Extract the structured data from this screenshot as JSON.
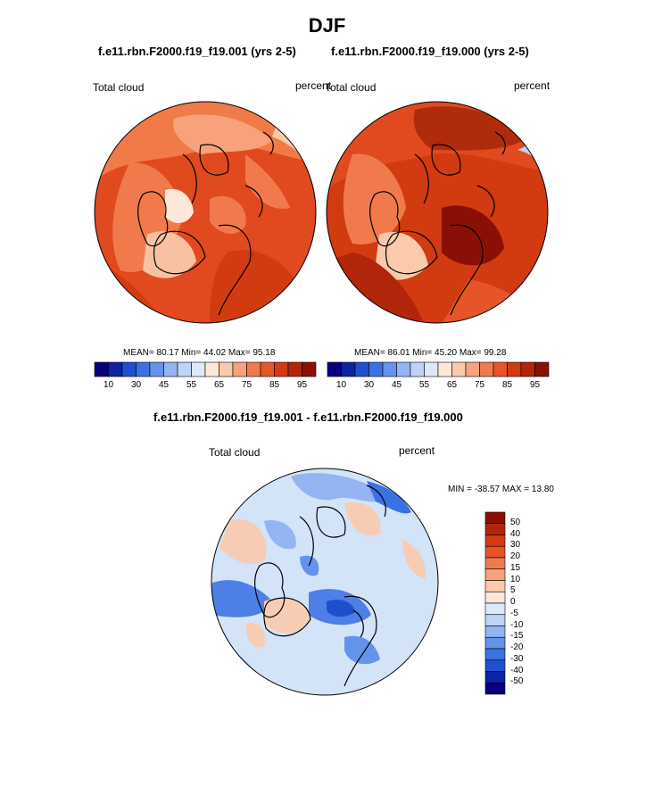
{
  "title": "DJF",
  "panels": [
    {
      "id": "left",
      "title": "f.e11.rbn.F2000.f19_f19.001 (yrs 2-5)",
      "left_label": "Total cloud",
      "right_label": "percent",
      "stats": "MEAN=  80.17  Min=  44.02  Max=  95.18"
    },
    {
      "id": "right",
      "title": "f.e11.rbn.F2000.f19_f19.000 (yrs 2-5)",
      "left_label": "Total cloud",
      "right_label": "percent",
      "stats": "MEAN=  86.01  Min=  45.20  Max=  99.28"
    }
  ],
  "colorbar_top": {
    "tick_labels": [
      "10",
      "30",
      "45",
      "55",
      "65",
      "75",
      "85",
      "95"
    ],
    "colors": [
      "#08007f",
      "#0c23a3",
      "#1f4fcf",
      "#3a72e3",
      "#6593ec",
      "#94b5f1",
      "#bed3f6",
      "#dde9fb",
      "#fde7d8",
      "#fbc9ac",
      "#f7a27a",
      "#f17a4d",
      "#e55527",
      "#d23a10",
      "#b3250a",
      "#8a1006"
    ]
  },
  "difference": {
    "title": "f.e11.rbn.F2000.f19_f19.001 - f.e11.rbn.F2000.f19_f19.000",
    "left_label": "Total cloud",
    "right_label": "percent",
    "minmax": "MIN = -38.57 MAX =  13.80",
    "colorbar": {
      "tick_labels": [
        "50",
        "40",
        "30",
        "20",
        "15",
        "10",
        "5",
        "0",
        "-5",
        "-10",
        "-15",
        "-20",
        "-30",
        "-40",
        "-50"
      ],
      "colors": [
        "#8a1006",
        "#b3250a",
        "#d23a10",
        "#e55527",
        "#f17a4d",
        "#f7a27a",
        "#fbc9ac",
        "#fde7d8",
        "#dde9fb",
        "#bed3f6",
        "#94b5f1",
        "#6593ec",
        "#3a72e3",
        "#1f4fcf",
        "#0c23a3",
        "#08007f"
      ]
    }
  },
  "colors": {
    "field_high": "#e04a1e",
    "field_mid": "#f07a48",
    "field_low": "#f7c1a2",
    "field_dark": "#b02a0c",
    "diff_base": "#d3e3f8",
    "diff_neg": "#4d7fe6",
    "diff_neg_strong": "#1f4fcf",
    "diff_pos": "#f6cdb4"
  }
}
